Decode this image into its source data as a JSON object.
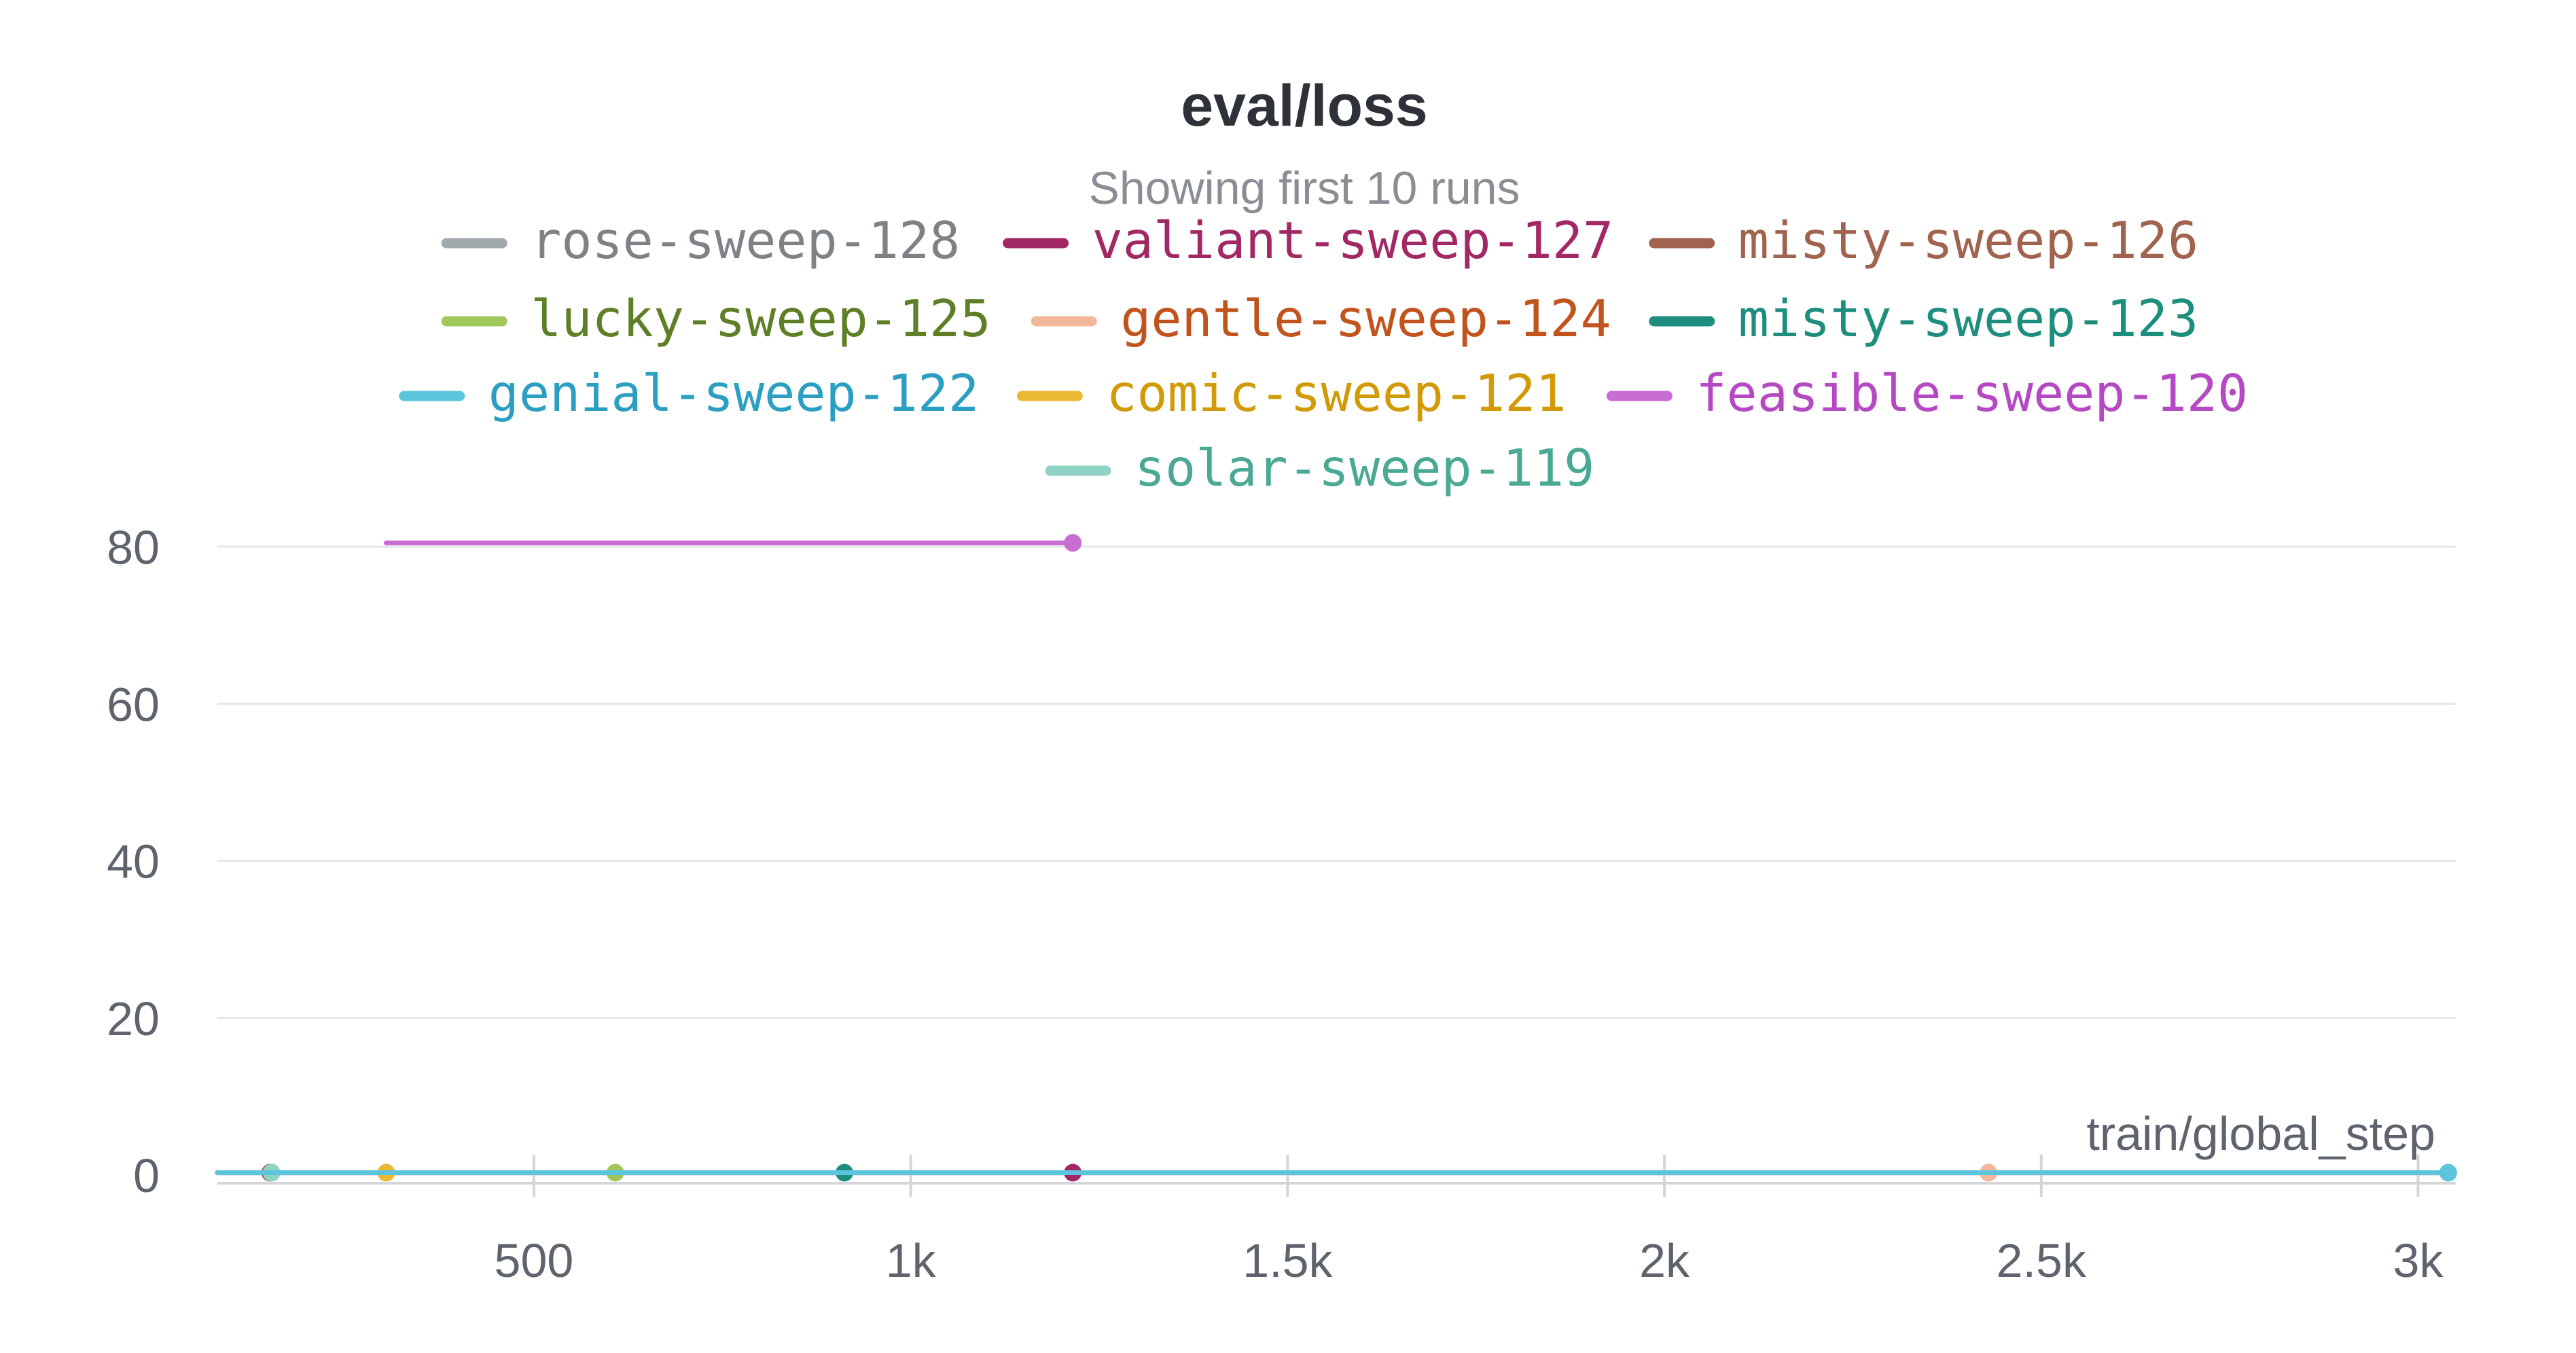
{
  "chart_data": {
    "type": "line",
    "title": "eval/loss",
    "subtitle": "Showing first 10 runs",
    "xlabel": "train/global_step",
    "ylabel": "",
    "xlim": [
      80,
      3050
    ],
    "ylim": [
      0,
      80
    ],
    "x_ticks": [
      {
        "value": 500,
        "label": "500"
      },
      {
        "value": 1000,
        "label": "1k"
      },
      {
        "value": 1500,
        "label": "1.5k"
      },
      {
        "value": 2000,
        "label": "2k"
      },
      {
        "value": 2500,
        "label": "2.5k"
      },
      {
        "value": 3000,
        "label": "3k"
      }
    ],
    "y_ticks": [
      {
        "value": 0,
        "label": "0"
      },
      {
        "value": 20,
        "label": "20"
      },
      {
        "value": 40,
        "label": "40"
      },
      {
        "value": 60,
        "label": "60"
      },
      {
        "value": 80,
        "label": "80"
      }
    ],
    "grid": true,
    "legend_position": "top-center",
    "series": [
      {
        "name": "rose-sweep-128",
        "color": "#a1a9ad",
        "text_color": "#7e8287",
        "x": [
          80,
          150
        ],
        "y": [
          0.3,
          0.3
        ]
      },
      {
        "name": "valiant-sweep-127",
        "color": "#a12864",
        "text_color": "#a12864",
        "x": [
          80,
          1215
        ],
        "y": [
          0.3,
          0.3
        ]
      },
      {
        "name": "misty-sweep-126",
        "color": "#a0634d",
        "text_color": "#a0634d",
        "x": [
          80,
          150
        ],
        "y": [
          0.3,
          0.3
        ]
      },
      {
        "name": "lucky-sweep-125",
        "color": "#a0c75c",
        "text_color": "#5f7f27",
        "x": [
          80,
          608
        ],
        "y": [
          0.3,
          0.3
        ]
      },
      {
        "name": "gentle-sweep-124",
        "color": "#f3b89a",
        "text_color": "#c1541d",
        "x": [
          80,
          2430
        ],
        "y": [
          0.3,
          0.3
        ]
      },
      {
        "name": "misty-sweep-123",
        "color": "#1d8e7d",
        "text_color": "#1d8e7d",
        "x": [
          80,
          912
        ],
        "y": [
          0.3,
          0.3
        ]
      },
      {
        "name": "genial-sweep-122",
        "color": "#5cc4dc",
        "text_color": "#2a9fc2",
        "x": [
          80,
          3040
        ],
        "y": [
          0.3,
          0.3
        ]
      },
      {
        "name": "comic-sweep-121",
        "color": "#ebb834",
        "text_color": "#d19a06",
        "x": [
          80,
          304
        ],
        "y": [
          0.3,
          0.3
        ]
      },
      {
        "name": "feasible-sweep-120",
        "color": "#c86dd2",
        "text_color": "#b548c3",
        "x": [
          304,
          1215
        ],
        "y": [
          80.5,
          80.5
        ]
      },
      {
        "name": "solar-sweep-119",
        "color": "#8ed3c5",
        "text_color": "#4aa994",
        "x": [
          80,
          152
        ],
        "y": [
          0.3,
          0.3
        ]
      }
    ]
  }
}
